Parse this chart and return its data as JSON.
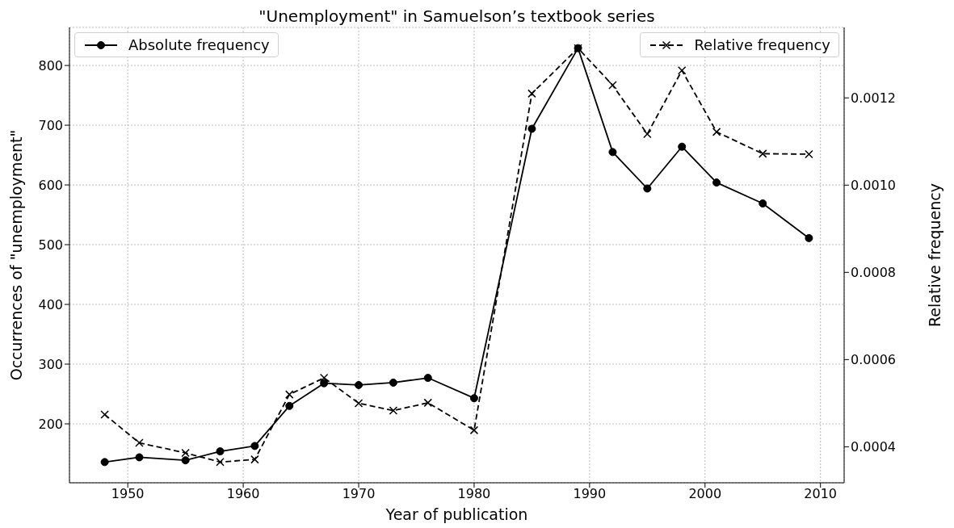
{
  "chart_data": {
    "type": "line",
    "title": "\"Unemployment\" in Samuelson’s textbook series",
    "xlabel": "Year of publication",
    "ylabel": "Occurrences of \"unemployment\"",
    "y2label": "Relative frequency",
    "x": [
      1948,
      1951,
      1955,
      1958,
      1961,
      1964,
      1967,
      1970,
      1973,
      1976,
      1980,
      1985,
      1989,
      1992,
      1995,
      1998,
      2001,
      2005,
      2009
    ],
    "series": [
      {
        "name": "Absolute frequency",
        "color": "#000000",
        "marker": "circle",
        "line_style": "solid",
        "values": [
          136,
          144,
          139,
          154,
          163,
          230,
          268,
          265,
          269,
          277,
          243,
          694,
          829,
          655,
          594,
          664,
          604,
          569,
          511
        ]
      },
      {
        "name": "Relative frequency",
        "color": "#000000",
        "marker": "cross",
        "line_style": "dashed",
        "axis": "y2",
        "values": [
          0.000474,
          0.000409,
          0.000386,
          0.000365,
          0.000371,
          0.00052,
          0.000558,
          0.0005,
          0.000483,
          0.000501,
          0.000438,
          0.00121,
          0.001314,
          0.001229,
          0.001117,
          0.001263,
          0.001122,
          0.001072,
          0.001071
        ]
      }
    ],
    "xlim": [
      1944.95,
      2012.05
    ],
    "xticks": [
      1950,
      1960,
      1970,
      1980,
      1990,
      2000,
      2010
    ],
    "ylim": [
      101.35,
      863.65
    ],
    "yticks": [
      200,
      300,
      400,
      500,
      600,
      700,
      800
    ],
    "y2lim": [
      0.0003175,
      0.0013615
    ],
    "y2ticks": [
      0.0004,
      {
        "value": 0.0006,
        "label": "0.0006"
      },
      {
        "value": 0.0008,
        "label": "0.0008"
      },
      {
        "value": 0.001,
        "label": "0.0010"
      },
      0.0012
    ],
    "grid": true,
    "legend": "top"
  }
}
